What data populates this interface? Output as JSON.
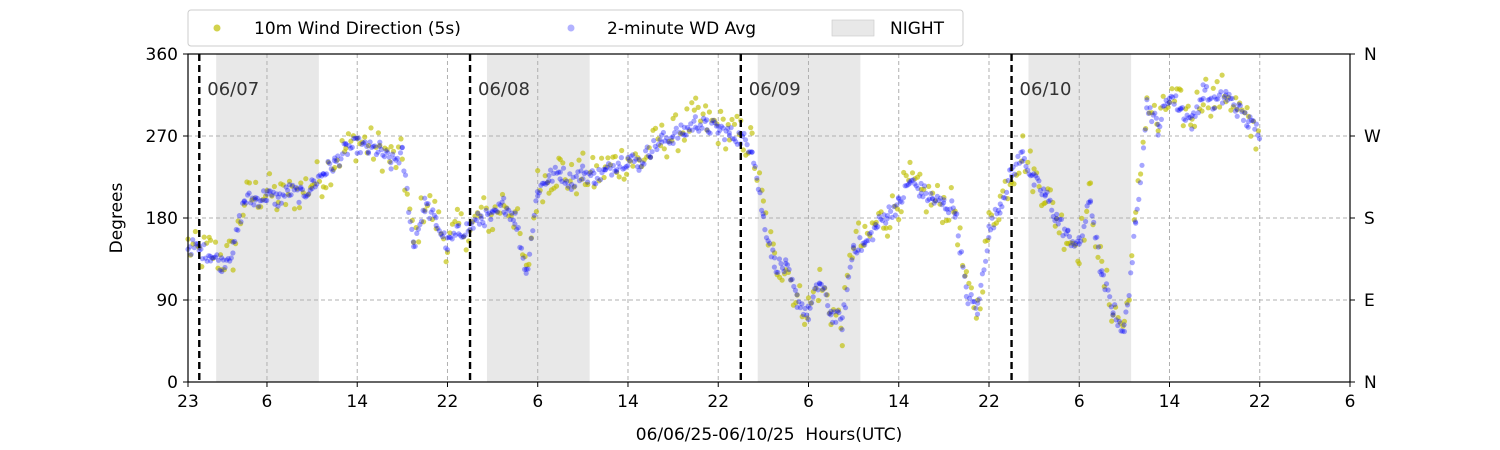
{
  "chart_data": {
    "type": "scatter",
    "xlabel": "06/06/25-06/10/25  Hours(UTC)",
    "ylabel": "Degrees",
    "ylim": [
      0,
      360
    ],
    "xlim_hours": [
      23,
      126
    ],
    "x_ticks": [
      {
        "h": 23,
        "label": "23"
      },
      {
        "h": 30,
        "label": "6"
      },
      {
        "h": 38,
        "label": "14"
      },
      {
        "h": 46,
        "label": "22"
      },
      {
        "h": 54,
        "label": "6"
      },
      {
        "h": 62,
        "label": "14"
      },
      {
        "h": 70,
        "label": "22"
      },
      {
        "h": 78,
        "label": "6"
      },
      {
        "h": 86,
        "label": "14"
      },
      {
        "h": 94,
        "label": "22"
      },
      {
        "h": 102,
        "label": "6"
      },
      {
        "h": 110,
        "label": "14"
      },
      {
        "h": 118,
        "label": "22"
      },
      {
        "h": 126,
        "label": "6"
      }
    ],
    "y_ticks": [
      "0",
      "90",
      "180",
      "270",
      "360"
    ],
    "y_ticks_right": [
      "N",
      "E",
      "S",
      "W",
      "N"
    ],
    "day_markers": [
      {
        "h": 24,
        "label": "06/07"
      },
      {
        "h": 48,
        "label": "06/08"
      },
      {
        "h": 72,
        "label": "06/09"
      },
      {
        "h": 96,
        "label": "06/10"
      }
    ],
    "night_spans": [
      [
        25.5,
        34.6
      ],
      [
        49.5,
        58.6
      ],
      [
        73.5,
        82.6
      ],
      [
        97.5,
        106.6
      ]
    ],
    "legend": {
      "placement": "top-center",
      "items": [
        "10m Wind Direction (5s)",
        "2-minute WD Avg",
        "NIGHT"
      ]
    },
    "grid": true,
    "series": [
      {
        "name": "10m Wind Direction (5s)",
        "color": "#bfbf00",
        "points": [
          [
            23,
            150
          ],
          [
            24,
            140
          ],
          [
            25,
            145
          ],
          [
            26,
            135
          ],
          [
            27,
            140
          ],
          [
            28,
            200
          ],
          [
            29,
            205
          ],
          [
            30,
            210
          ],
          [
            31,
            200
          ],
          [
            32,
            205
          ],
          [
            33,
            210
          ],
          [
            34,
            220
          ],
          [
            35,
            225
          ],
          [
            36,
            245
          ],
          [
            37,
            255
          ],
          [
            38,
            265
          ],
          [
            39,
            260
          ],
          [
            40,
            255
          ],
          [
            41,
            245
          ],
          [
            42,
            245
          ],
          [
            43,
            150
          ],
          [
            44,
            200
          ],
          [
            45,
            180
          ],
          [
            46,
            150
          ],
          [
            47,
            170
          ],
          [
            48,
            165
          ],
          [
            49,
            185
          ],
          [
            50,
            180
          ],
          [
            51,
            200
          ],
          [
            52,
            185
          ],
          [
            53,
            115
          ],
          [
            54,
            215
          ],
          [
            55,
            225
          ],
          [
            56,
            235
          ],
          [
            57,
            220
          ],
          [
            58,
            230
          ],
          [
            59,
            225
          ],
          [
            60,
            235
          ],
          [
            61,
            240
          ],
          [
            62,
            245
          ],
          [
            63,
            240
          ],
          [
            64,
            255
          ],
          [
            65,
            265
          ],
          [
            66,
            270
          ],
          [
            67,
            280
          ],
          [
            68,
            290
          ],
          [
            69,
            285
          ],
          [
            70,
            280
          ],
          [
            71,
            275
          ],
          [
            72,
            270
          ],
          [
            73,
            260
          ],
          [
            74,
            190
          ],
          [
            75,
            130
          ],
          [
            76,
            130
          ],
          [
            77,
            90
          ],
          [
            78,
            80
          ],
          [
            79,
            110
          ],
          [
            80,
            80
          ],
          [
            81,
            60
          ],
          [
            82,
            160
          ],
          [
            83,
            150
          ],
          [
            84,
            175
          ],
          [
            85,
            180
          ],
          [
            86,
            200
          ],
          [
            87,
            220
          ],
          [
            88,
            205
          ],
          [
            89,
            200
          ],
          [
            90,
            195
          ],
          [
            91,
            190
          ],
          [
            92,
            100
          ],
          [
            93,
            80
          ],
          [
            94,
            170
          ],
          [
            95,
            200
          ],
          [
            96,
            230
          ],
          [
            97,
            255
          ],
          [
            98,
            225
          ],
          [
            99,
            210
          ],
          [
            100,
            180
          ],
          [
            101,
            160
          ],
          [
            102,
            150
          ],
          [
            103,
            205
          ],
          [
            104,
            120
          ],
          [
            105,
            80
          ],
          [
            106,
            60
          ],
          [
            107,
            175
          ],
          [
            108,
            310
          ],
          [
            109,
            280
          ],
          [
            110,
            310
          ],
          [
            111,
            300
          ],
          [
            112,
            290
          ],
          [
            113,
            320
          ],
          [
            114,
            310
          ],
          [
            115,
            320
          ],
          [
            116,
            300
          ],
          [
            117,
            280
          ],
          [
            118,
            270
          ]
        ]
      },
      {
        "name": "2-minute WD Avg",
        "color": "#0000ff",
        "points": [
          [
            23,
            150
          ],
          [
            24,
            145
          ],
          [
            25,
            140
          ],
          [
            26,
            130
          ],
          [
            27,
            145
          ],
          [
            28,
            200
          ],
          [
            29,
            200
          ],
          [
            30,
            205
          ],
          [
            31,
            200
          ],
          [
            32,
            210
          ],
          [
            33,
            205
          ],
          [
            34,
            215
          ],
          [
            35,
            230
          ],
          [
            36,
            240
          ],
          [
            37,
            255
          ],
          [
            38,
            260
          ],
          [
            39,
            255
          ],
          [
            40,
            255
          ],
          [
            41,
            240
          ],
          [
            42,
            250
          ],
          [
            43,
            150
          ],
          [
            44,
            195
          ],
          [
            45,
            175
          ],
          [
            46,
            150
          ],
          [
            47,
            165
          ],
          [
            48,
            170
          ],
          [
            49,
            180
          ],
          [
            50,
            180
          ],
          [
            51,
            195
          ],
          [
            52,
            180
          ],
          [
            53,
            120
          ],
          [
            54,
            210
          ],
          [
            55,
            225
          ],
          [
            56,
            230
          ],
          [
            57,
            220
          ],
          [
            58,
            230
          ],
          [
            59,
            225
          ],
          [
            60,
            230
          ],
          [
            61,
            240
          ],
          [
            62,
            245
          ],
          [
            63,
            240
          ],
          [
            64,
            255
          ],
          [
            65,
            265
          ],
          [
            66,
            270
          ],
          [
            67,
            275
          ],
          [
            68,
            285
          ],
          [
            69,
            280
          ],
          [
            70,
            278
          ],
          [
            71,
            272
          ],
          [
            72,
            268
          ],
          [
            73,
            258
          ],
          [
            74,
            180
          ],
          [
            75,
            130
          ],
          [
            76,
            125
          ],
          [
            77,
            90
          ],
          [
            78,
            75
          ],
          [
            79,
            110
          ],
          [
            80,
            75
          ],
          [
            81,
            65
          ],
          [
            82,
            150
          ],
          [
            83,
            150
          ],
          [
            84,
            170
          ],
          [
            85,
            185
          ],
          [
            86,
            195
          ],
          [
            87,
            220
          ],
          [
            88,
            210
          ],
          [
            89,
            200
          ],
          [
            90,
            195
          ],
          [
            91,
            190
          ],
          [
            92,
            95
          ],
          [
            93,
            80
          ],
          [
            94,
            165
          ],
          [
            95,
            195
          ],
          [
            96,
            230
          ],
          [
            97,
            250
          ],
          [
            98,
            220
          ],
          [
            99,
            205
          ],
          [
            100,
            180
          ],
          [
            101,
            160
          ],
          [
            102,
            150
          ],
          [
            103,
            200
          ],
          [
            104,
            115
          ],
          [
            105,
            80
          ],
          [
            106,
            55
          ],
          [
            107,
            170
          ],
          [
            108,
            305
          ],
          [
            109,
            280
          ],
          [
            110,
            315
          ],
          [
            111,
            300
          ],
          [
            112,
            285
          ],
          [
            113,
            320
          ],
          [
            114,
            305
          ],
          [
            115,
            315
          ],
          [
            116,
            300
          ],
          [
            117,
            285
          ],
          [
            118,
            275
          ]
        ]
      }
    ]
  }
}
